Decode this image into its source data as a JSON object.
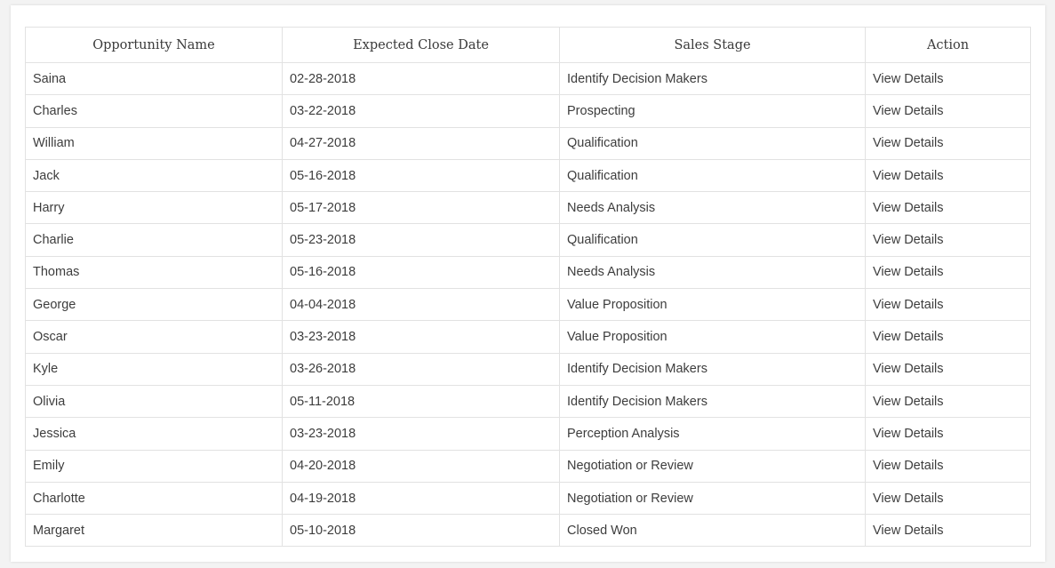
{
  "table": {
    "headers": [
      "Opportunity Name",
      "Expected Close Date",
      "Sales Stage",
      "Action"
    ],
    "rows": [
      [
        "Saina",
        "02-28-2018",
        "Identify Decision Makers",
        "View Details"
      ],
      [
        "Charles",
        "03-22-2018",
        "Prospecting",
        "View Details"
      ],
      [
        "William",
        "04-27-2018",
        "Qualification",
        "View Details"
      ],
      [
        "Jack",
        "05-16-2018",
        "Qualification",
        "View Details"
      ],
      [
        "Harry",
        "05-17-2018",
        "Needs Analysis",
        "View Details"
      ],
      [
        "Charlie",
        "05-23-2018",
        "Qualification",
        "View Details"
      ],
      [
        "Thomas",
        "05-16-2018",
        "Needs Analysis",
        "View Details"
      ],
      [
        "George",
        "04-04-2018",
        "Value Proposition",
        "View Details"
      ],
      [
        "Oscar",
        "03-23-2018",
        "Value Proposition",
        "View Details"
      ],
      [
        "Kyle",
        "03-26-2018",
        "Identify Decision Makers",
        "View Details"
      ],
      [
        "Olivia",
        "05-11-2018",
        "Identify Decision Makers",
        "View Details"
      ],
      [
        "Jessica",
        "03-23-2018",
        "Perception Analysis",
        "View Details"
      ],
      [
        "Emily",
        "04-20-2018",
        "Negotiation or Review",
        "View Details"
      ],
      [
        "Charlotte",
        "04-19-2018",
        "Negotiation or Review",
        "View Details"
      ],
      [
        "Margaret",
        "05-10-2018",
        "Closed Won",
        "View Details"
      ]
    ]
  }
}
